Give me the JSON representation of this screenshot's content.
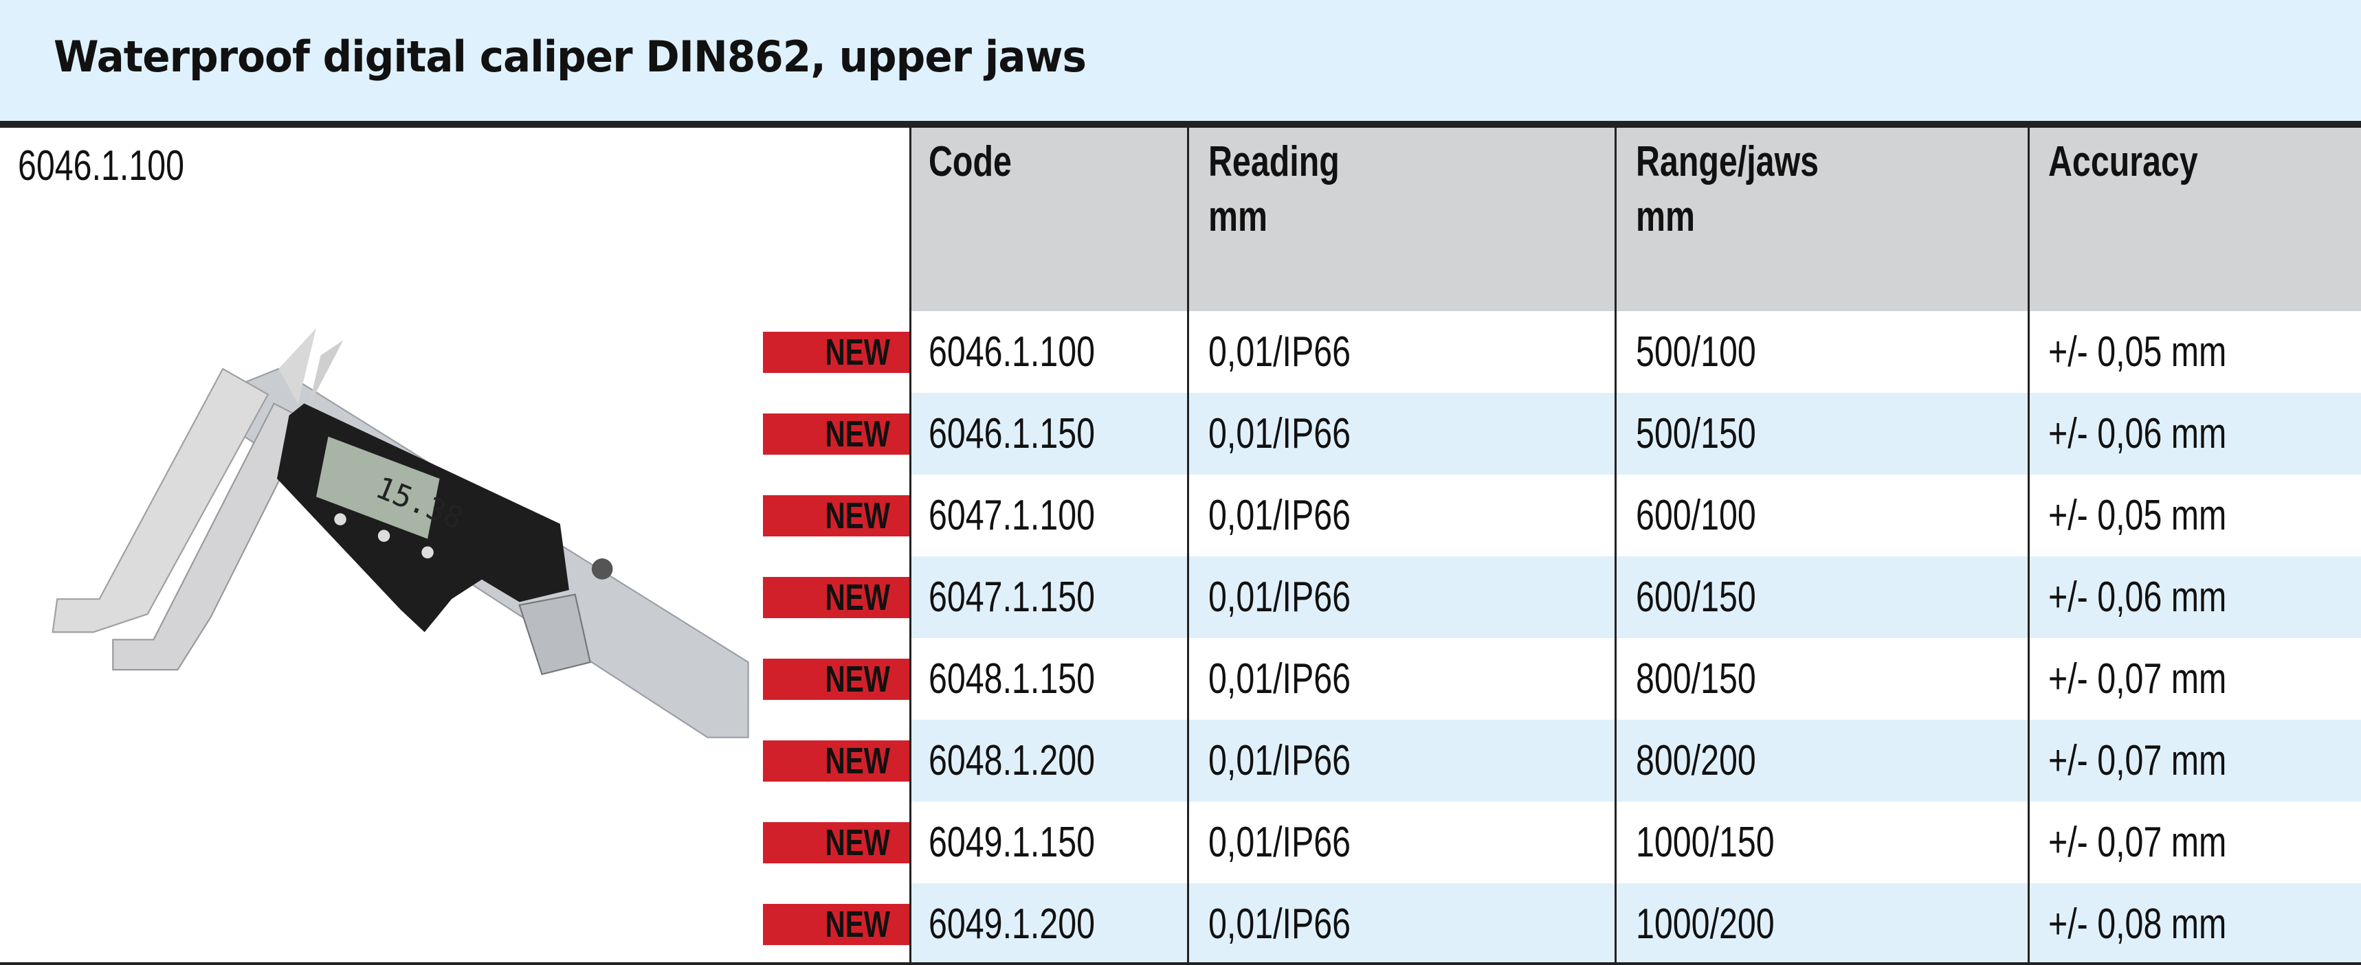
{
  "title": "Waterproof digital caliper DIN862, upper jaws",
  "product_code": "6046.1.100",
  "image": {
    "lcd_reading": "15.38"
  },
  "table": {
    "headers": [
      {
        "line1": "Code",
        "line2": ""
      },
      {
        "line1": "Reading",
        "line2": "mm"
      },
      {
        "line1": "Range/jaws",
        "line2": "mm"
      },
      {
        "line1": "Accuracy",
        "line2": ""
      }
    ],
    "badge_label": "NEW",
    "rows": [
      {
        "badge": "NEW",
        "code": "6046.1.100",
        "reading": "0,01/IP66",
        "range": "500/100",
        "accuracy": "+/- 0,05 mm"
      },
      {
        "badge": "NEW",
        "code": "6046.1.150",
        "reading": "0,01/IP66",
        "range": "500/150",
        "accuracy": "+/- 0,06 mm"
      },
      {
        "badge": "NEW",
        "code": "6047.1.100",
        "reading": "0,01/IP66",
        "range": "600/100",
        "accuracy": "+/- 0,05 mm"
      },
      {
        "badge": "NEW",
        "code": "6047.1.150",
        "reading": "0,01/IP66",
        "range": "600/150",
        "accuracy": "+/- 0,06 mm"
      },
      {
        "badge": "NEW",
        "code": "6048.1.150",
        "reading": "0,01/IP66",
        "range": "800/150",
        "accuracy": "+/- 0,07 mm"
      },
      {
        "badge": "NEW",
        "code": "6048.1.200",
        "reading": "0,01/IP66",
        "range": "800/200",
        "accuracy": "+/- 0,07 mm"
      },
      {
        "badge": "NEW",
        "code": "6049.1.150",
        "reading": "0,01/IP66",
        "range": "1000/150",
        "accuracy": "+/- 0,07 mm"
      },
      {
        "badge": "NEW",
        "code": "6049.1.200",
        "reading": "0,01/IP66",
        "range": "1000/200",
        "accuracy": "+/- 0,08 mm"
      }
    ]
  },
  "colors": {
    "header_bg": "#dff1fc",
    "table_header_bg": "#d2d3d5",
    "alt_row_bg": "#e0f0fb",
    "badge_red": "#d2202a"
  }
}
